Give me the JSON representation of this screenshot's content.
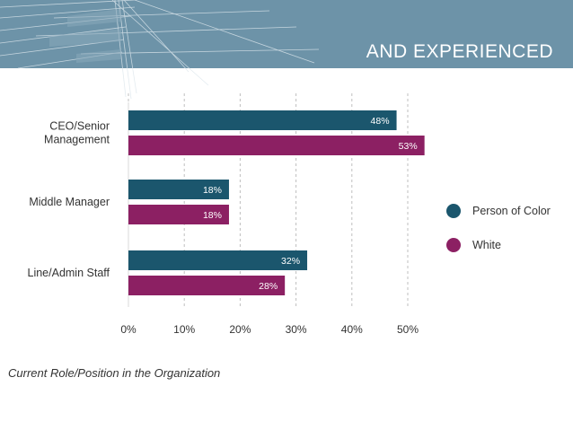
{
  "header": {
    "title": "AND EXPERIENCED"
  },
  "colors": {
    "banner": "#6d93a8",
    "person_of_color": "#1b566d",
    "white": "#8c2063",
    "grid": "#bfbfbf"
  },
  "chart_data": {
    "type": "bar",
    "orientation": "horizontal",
    "categories": [
      "CEO/Senior\nManagement",
      "Middle Manager",
      "Line/Admin Staff"
    ],
    "series": [
      {
        "name": "Person of Color",
        "values": [
          48,
          18,
          32
        ],
        "labels": [
          "48%",
          "18%",
          "32%"
        ]
      },
      {
        "name": "White",
        "values": [
          53,
          18,
          28
        ],
        "labels": [
          "53%",
          "18%",
          "28%"
        ]
      }
    ],
    "xlim": [
      0,
      55
    ],
    "xticks": [
      0,
      10,
      20,
      30,
      40,
      50
    ],
    "xtick_labels": [
      "0%",
      "10%",
      "20%",
      "30%",
      "40%",
      "50%"
    ],
    "grid": "vertical dashed",
    "legend_position": "right",
    "xlabel": "Current Role/Position in the Organization"
  }
}
